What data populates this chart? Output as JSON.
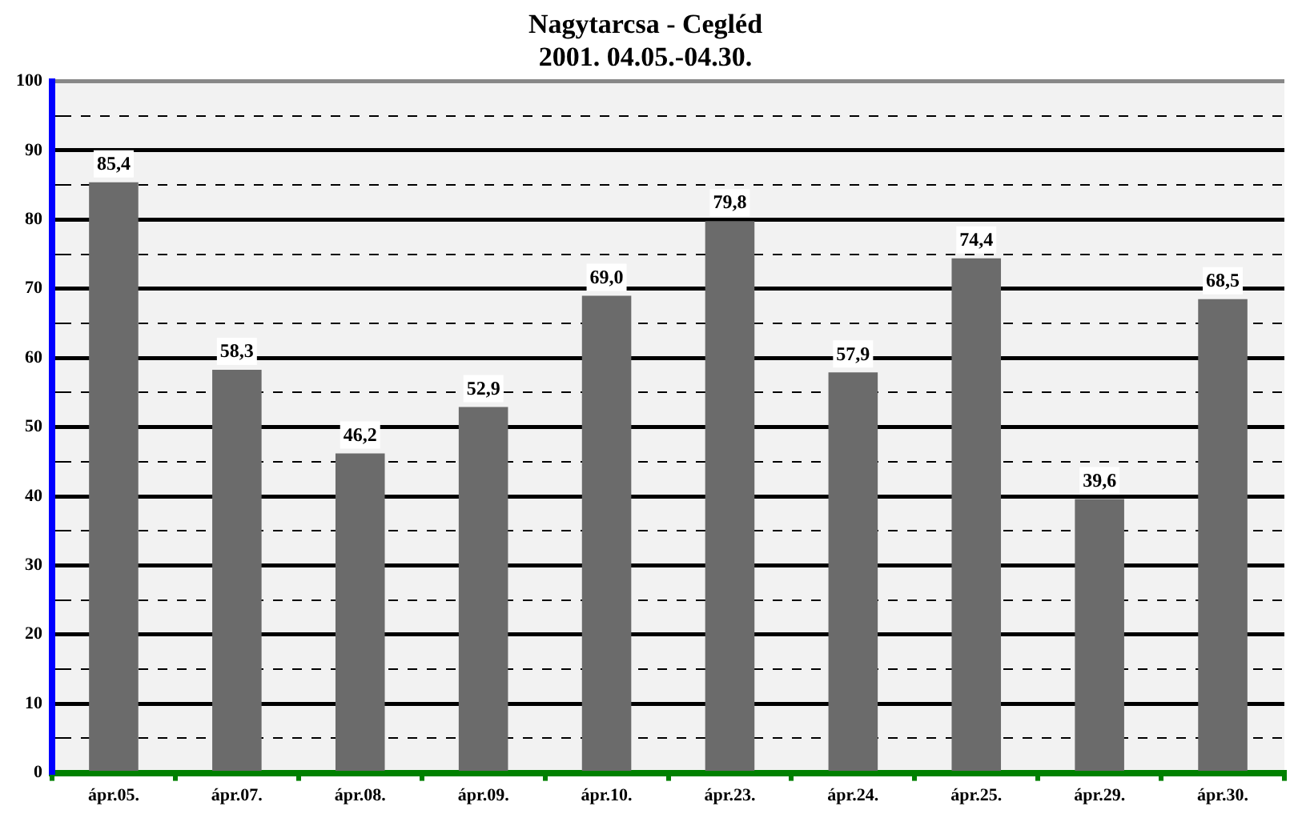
{
  "chart_data": {
    "type": "bar",
    "title": "Nagytarcsa - Cegléd",
    "subtitle": "2001. 04.05.-04.30.",
    "categories": [
      "ápr.05.",
      "ápr.07.",
      "ápr.08.",
      "ápr.09.",
      "ápr.10.",
      "ápr.23.",
      "ápr.24.",
      "ápr.25.",
      "ápr.29.",
      "ápr.30."
    ],
    "values": [
      85.4,
      58.3,
      46.2,
      52.9,
      69.0,
      79.8,
      57.9,
      74.4,
      39.6,
      68.5
    ],
    "value_labels": [
      "85,4",
      "58,3",
      "46,2",
      "52,9",
      "69,0",
      "79,8",
      "57,9",
      "74,4",
      "39,6",
      "68,5"
    ],
    "color": "#6b6b6b",
    "ylim": [
      0,
      100
    ],
    "yticks": [
      0,
      {
        "value": 5,
        "label": null
      },
      10,
      {
        "value": 15,
        "label": null
      },
      20,
      {
        "value": 25,
        "label": null
      },
      30,
      {
        "value": 35,
        "label": null
      },
      40,
      {
        "value": 45,
        "label": null
      },
      50,
      {
        "value": 55,
        "label": null
      },
      60,
      {
        "value": 65,
        "label": null
      },
      70,
      {
        "value": 75,
        "label": null
      },
      80,
      {
        "value": 85,
        "label": null
      },
      90,
      {
        "value": 95,
        "label": null
      },
      100
    ],
    "grid": "y",
    "legend": false
  }
}
